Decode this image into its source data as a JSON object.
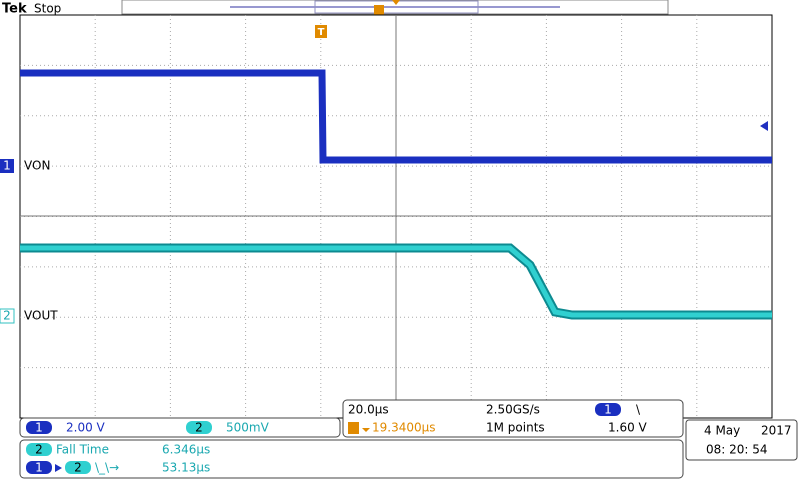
{
  "header": {
    "brand": "Tek",
    "status": "Stop"
  },
  "markers": {
    "trigger": "T"
  },
  "channels": [
    {
      "number": "1",
      "label": "VON",
      "scale": "2.00 V"
    },
    {
      "number": "2",
      "label": "VOUT",
      "scale": "500mV"
    }
  ],
  "timebase": {
    "scale": "20.0µs",
    "sample_rate": "2.50GS/s",
    "trigger_position": "19.3400µs",
    "record_length": "1M points",
    "trigger_source": "1",
    "trigger_slope": "\\",
    "trigger_level": "1.60 V"
  },
  "measurements": [
    {
      "source": "2",
      "name": "Fall Time",
      "value": "6.346µs"
    },
    {
      "source": "1",
      "target": "2",
      "name": "\\_\\→",
      "value": "53.13µs"
    }
  ],
  "clock": {
    "date": "4 May",
    "year": "2017",
    "time": "08: 20: 54"
  }
}
